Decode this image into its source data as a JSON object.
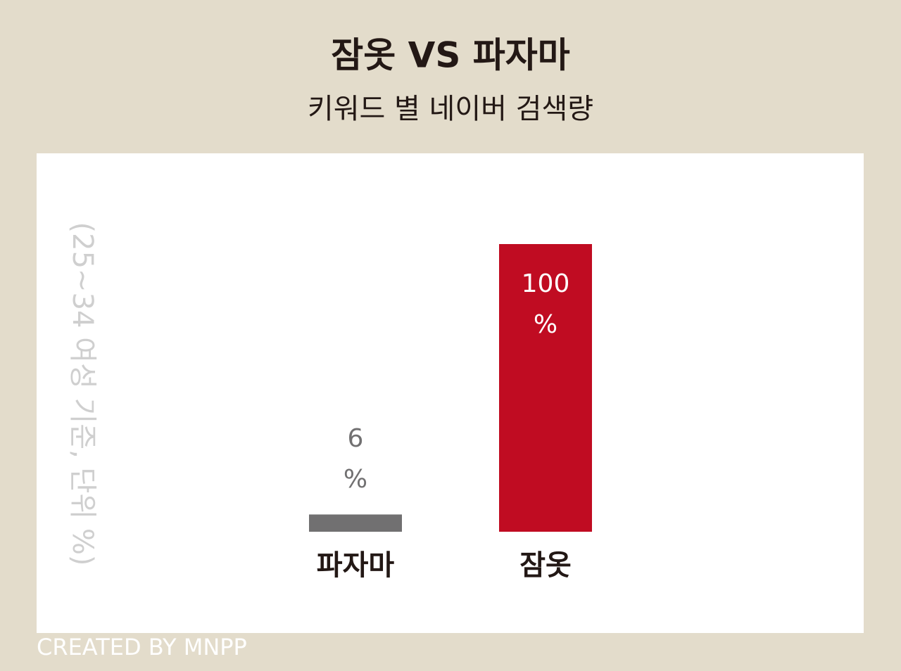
{
  "chart_data": {
    "type": "bar",
    "title": "잠옷 VS 파자마",
    "subtitle": "키워드 별 네이버 검색량",
    "y_label": "(25~34 여성 기준, 단위 %)",
    "categories": [
      "파자마",
      "잠옷"
    ],
    "values": [
      6,
      100
    ],
    "value_labels": [
      "6 %",
      "100 %"
    ],
    "colors": [
      "#717071",
      "#c00c22"
    ],
    "ylim": [
      0,
      100
    ],
    "grid": false,
    "credit": "CREATED BY MNPP"
  }
}
